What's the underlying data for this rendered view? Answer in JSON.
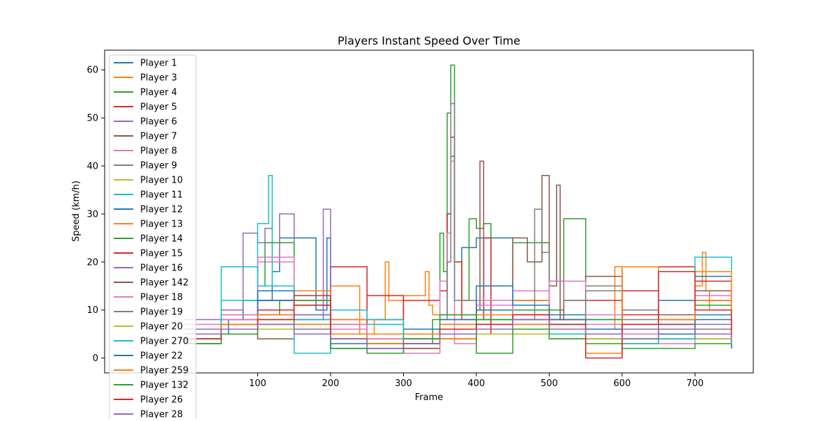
{
  "chart_data": {
    "type": "line",
    "title": "Players Instant Speed Over Time",
    "xlabel": "Frame",
    "ylabel": "Speed (km/h)",
    "xlim": [
      -110,
      780
    ],
    "ylim": [
      -3.1,
      64.1
    ],
    "xticks": [
      0,
      100,
      200,
      300,
      400,
      500,
      600,
      700
    ],
    "yticks": [
      0,
      10,
      20,
      30,
      40,
      50,
      60
    ],
    "grid": false,
    "legend_position": "upper-left",
    "series": [
      {
        "name": "Player 1",
        "color": "#1f77b4",
        "x": [
          0,
          60,
          80,
          120,
          130,
          180,
          195,
          200,
          300,
          350,
          360,
          365,
          370,
          380,
          400,
          450,
          500,
          550,
          600,
          650,
          700,
          750
        ],
        "y": [
          5,
          8,
          12,
          18,
          25,
          10,
          25,
          5,
          6,
          9,
          30,
          42,
          20,
          23,
          25,
          12,
          9,
          8,
          10,
          12,
          9,
          2
        ]
      },
      {
        "name": "Player 3",
        "color": "#ff7f0e",
        "x": [
          0,
          50,
          100,
          150,
          200,
          240,
          260,
          275,
          280,
          300,
          330,
          335,
          340,
          400,
          450,
          500,
          550,
          590,
          600,
          650,
          700,
          710,
          715,
          720,
          750
        ],
        "y": [
          4,
          7,
          10,
          12,
          15,
          5,
          8,
          20,
          12,
          13,
          18,
          11,
          9,
          10,
          12,
          8,
          6,
          19,
          10,
          8,
          15,
          22,
          14,
          10,
          16
        ]
      },
      {
        "name": "Player 4",
        "color": "#2ca02c",
        "x": [
          0,
          50,
          100,
          130,
          150,
          200,
          250,
          300,
          340,
          350,
          355,
          360,
          365,
          370,
          380,
          390,
          400,
          410,
          420,
          450,
          500,
          520,
          550,
          600,
          650,
          700,
          750
        ],
        "y": [
          3,
          6,
          9,
          12,
          8,
          2,
          1,
          3,
          8,
          26,
          18,
          51,
          61,
          20,
          12,
          29,
          27,
          28,
          5,
          24,
          10,
          29,
          8,
          5,
          6,
          12,
          11
        ]
      },
      {
        "name": "Player 5",
        "color": "#d62728",
        "x": [
          0,
          50,
          100,
          150,
          200,
          250,
          300,
          350,
          360,
          365,
          370,
          380,
          410,
          420,
          450,
          500,
          550,
          600,
          650,
          700,
          750
        ],
        "y": [
          6,
          9,
          12,
          5,
          19,
          8,
          12,
          14,
          30,
          46,
          20,
          8,
          25,
          5,
          8,
          6,
          12,
          9,
          19,
          16,
          16
        ]
      },
      {
        "name": "Player 6",
        "color": "#9467bd",
        "x": [
          0,
          50,
          80,
          100,
          110,
          120,
          130,
          150,
          190,
          195,
          200,
          250,
          300,
          350,
          400,
          450,
          500,
          550,
          600,
          650,
          700,
          750
        ],
        "y": [
          8,
          10,
          26,
          24,
          27,
          20,
          30,
          8,
          31,
          31,
          5,
          3,
          5,
          8,
          10,
          9,
          6,
          5,
          7,
          8,
          6,
          5
        ]
      },
      {
        "name": "Player 7",
        "color": "#8c564b",
        "x": [
          0,
          50,
          100,
          150,
          200,
          250,
          300,
          350,
          400,
          405,
          410,
          450,
          470,
          490,
          500,
          510,
          515,
          520,
          550,
          600,
          650,
          700,
          750
        ],
        "y": [
          5,
          7,
          4,
          6,
          8,
          5,
          4,
          7,
          10,
          41,
          8,
          25,
          20,
          38,
          15,
          36,
          8,
          12,
          17,
          6,
          9,
          14,
          5
        ]
      },
      {
        "name": "Player 8",
        "color": "#e377c2",
        "x": [
          0,
          50,
          100,
          150,
          200,
          250,
          300,
          350,
          360,
          365,
          370,
          400,
          450,
          500,
          550,
          600,
          650,
          700,
          750
        ],
        "y": [
          7,
          9,
          20,
          8,
          6,
          4,
          5,
          16,
          26,
          41,
          3,
          12,
          14,
          7,
          9,
          5,
          6,
          12,
          17
        ]
      },
      {
        "name": "Player 9",
        "color": "#7f7f7f",
        "x": [
          0,
          50,
          100,
          150,
          200,
          250,
          300,
          350,
          360,
          365,
          370,
          400,
          450,
          480,
          490,
          500,
          520,
          550,
          600,
          650,
          700,
          750
        ],
        "y": [
          6,
          8,
          10,
          7,
          5,
          4,
          5,
          8,
          20,
          53,
          12,
          10,
          8,
          31,
          22,
          16,
          12,
          15,
          10,
          8,
          6,
          5
        ]
      },
      {
        "name": "Player 10",
        "color": "#bcbd22",
        "x": [
          0,
          50,
          100,
          150,
          200,
          250,
          300,
          350,
          400,
          450,
          500,
          550,
          600,
          650,
          700,
          750
        ],
        "y": [
          5,
          6,
          7,
          6,
          5,
          4,
          4,
          5,
          6,
          5,
          4,
          5,
          4,
          4,
          4,
          5
        ]
      },
      {
        "name": "Player 11",
        "color": "#17becf",
        "x": [
          0,
          50,
          100,
          115,
          120,
          150,
          200,
          250,
          300,
          350,
          400,
          450,
          500,
          550,
          600,
          650,
          700,
          750
        ],
        "y": [
          6,
          12,
          28,
          38,
          15,
          8,
          10,
          7,
          4,
          6,
          8,
          7,
          5,
          6,
          5,
          7,
          21,
          6
        ]
      },
      {
        "name": "Player 12",
        "color": "#1f77b4",
        "x": [
          0,
          50,
          100,
          150,
          200,
          250,
          300,
          350,
          400,
          450,
          500,
          550,
          600,
          650,
          700,
          750
        ],
        "y": [
          4,
          7,
          12,
          9,
          7,
          5,
          6,
          8,
          10,
          8,
          7,
          6,
          5,
          7,
          17,
          2
        ]
      },
      {
        "name": "Player 13",
        "color": "#ff7f0e",
        "x": [
          0,
          50,
          100,
          150,
          200,
          250,
          300,
          350,
          400,
          450,
          500,
          550,
          600,
          650,
          700,
          750
        ],
        "y": [
          5,
          6,
          10,
          14,
          8,
          5,
          5,
          7,
          9,
          8,
          6,
          5,
          7,
          6,
          12,
          3
        ]
      },
      {
        "name": "Player 14",
        "color": "#2ca02c",
        "x": [
          0,
          50,
          100,
          110,
          150,
          200,
          250,
          300,
          350,
          400,
          450,
          500,
          550,
          600,
          650,
          700,
          750
        ],
        "y": [
          4,
          8,
          15,
          24,
          11,
          2,
          1,
          3,
          6,
          8,
          10,
          7,
          5,
          4,
          5,
          11,
          14
        ]
      },
      {
        "name": "Player 15",
        "color": "#d62728",
        "x": [
          0,
          50,
          100,
          150,
          200,
          250,
          300,
          350,
          400,
          450,
          500,
          550,
          600,
          650,
          700,
          750
        ],
        "y": [
          5,
          7,
          10,
          11,
          4,
          13,
          4,
          6,
          7,
          9,
          8,
          6,
          14,
          7,
          5,
          3
        ]
      },
      {
        "name": "Player 16",
        "color": "#9467bd",
        "x": [
          0,
          50,
          100,
          150,
          200,
          250,
          300,
          350,
          400,
          450,
          500,
          550,
          600,
          650,
          700,
          750
        ],
        "y": [
          6,
          8,
          14,
          9,
          7,
          3,
          2,
          4,
          6,
          8,
          5,
          4,
          6,
          5,
          7,
          4
        ]
      },
      {
        "name": "Player 142",
        "color": "#8c564b",
        "x": [
          0,
          50,
          100,
          150,
          200,
          250,
          300,
          350,
          400,
          450,
          500,
          550,
          600,
          650,
          700,
          750
        ],
        "y": [
          5,
          6,
          8,
          6,
          4,
          3,
          2,
          4,
          5,
          7,
          6,
          4,
          3,
          4,
          5,
          3
        ]
      },
      {
        "name": "Player 18",
        "color": "#e377c2",
        "x": [
          0,
          50,
          100,
          150,
          200,
          250,
          300,
          350,
          400,
          450,
          500,
          550,
          600,
          650,
          700,
          750
        ],
        "y": [
          4,
          8,
          21,
          12,
          7,
          4,
          1,
          6,
          11,
          9,
          16,
          7,
          5,
          3,
          13,
          16
        ]
      },
      {
        "name": "Player 19",
        "color": "#7f7f7f",
        "x": [
          0,
          50,
          100,
          150,
          200,
          250,
          300,
          350,
          400,
          450,
          500,
          550,
          600,
          650,
          700,
          750
        ],
        "y": [
          3,
          5,
          9,
          6,
          4,
          3,
          3,
          5,
          6,
          8,
          6,
          14,
          8,
          5,
          4,
          4
        ]
      },
      {
        "name": "Player 20",
        "color": "#bcbd22",
        "x": [
          0,
          50,
          100,
          150,
          200,
          250,
          300,
          350,
          400,
          450,
          500,
          550,
          600,
          650,
          700,
          750
        ],
        "y": [
          4,
          5,
          6,
          5,
          4,
          3,
          3,
          4,
          5,
          6,
          5,
          4,
          4,
          5,
          4,
          4
        ]
      },
      {
        "name": "Player 270",
        "color": "#17becf",
        "x": [
          0,
          50,
          100,
          150,
          200,
          250,
          300,
          350,
          400,
          450,
          500,
          550,
          600,
          650,
          700,
          750
        ],
        "y": [
          5,
          19,
          15,
          1,
          10,
          8,
          4,
          5,
          6,
          7,
          5,
          1,
          3,
          4,
          5,
          6
        ]
      },
      {
        "name": "Player 22",
        "color": "#1f77b4",
        "x": [
          0,
          50,
          100,
          150,
          200,
          250,
          300,
          350,
          400,
          450,
          500,
          550,
          600,
          650,
          700,
          750
        ],
        "y": [
          4,
          6,
          14,
          5,
          3,
          2,
          3,
          5,
          15,
          11,
          8,
          6,
          4,
          5,
          8,
          2
        ]
      },
      {
        "name": "Player 259",
        "color": "#ff7f0e",
        "x": [
          0,
          50,
          100,
          150,
          200,
          250,
          300,
          350,
          400,
          450,
          500,
          550,
          600,
          650,
          700,
          750
        ],
        "y": [
          5,
          7,
          9,
          7,
          5,
          3,
          3,
          4,
          6,
          7,
          6,
          1,
          19,
          8,
          18,
          3
        ]
      },
      {
        "name": "Player 132",
        "color": "#2ca02c",
        "x": [
          0,
          50,
          100,
          150,
          200,
          250,
          300,
          350,
          400,
          450,
          500,
          550,
          600,
          650,
          700,
          750
        ],
        "y": [
          3,
          5,
          7,
          12,
          2,
          1,
          4,
          9,
          1,
          6,
          4,
          3,
          2,
          2,
          3,
          3
        ]
      },
      {
        "name": "Player 26",
        "color": "#d62728",
        "x": [
          0,
          50,
          100,
          150,
          200,
          250,
          300,
          350,
          400,
          450,
          500,
          550,
          600,
          650,
          700,
          750
        ],
        "y": [
          4,
          6,
          8,
          13,
          4,
          2,
          3,
          6,
          7,
          9,
          7,
          0,
          7,
          18,
          10,
          3
        ]
      },
      {
        "name": "Player 28",
        "color": "#9467bd",
        "x": [
          0,
          50,
          100,
          150,
          200,
          250,
          300,
          350,
          400,
          450,
          500,
          550,
          600,
          650,
          700,
          750
        ],
        "y": [
          5,
          6,
          7,
          5,
          4,
          2,
          3,
          5,
          6,
          8,
          6,
          5,
          4,
          6,
          5,
          3
        ]
      }
    ]
  }
}
